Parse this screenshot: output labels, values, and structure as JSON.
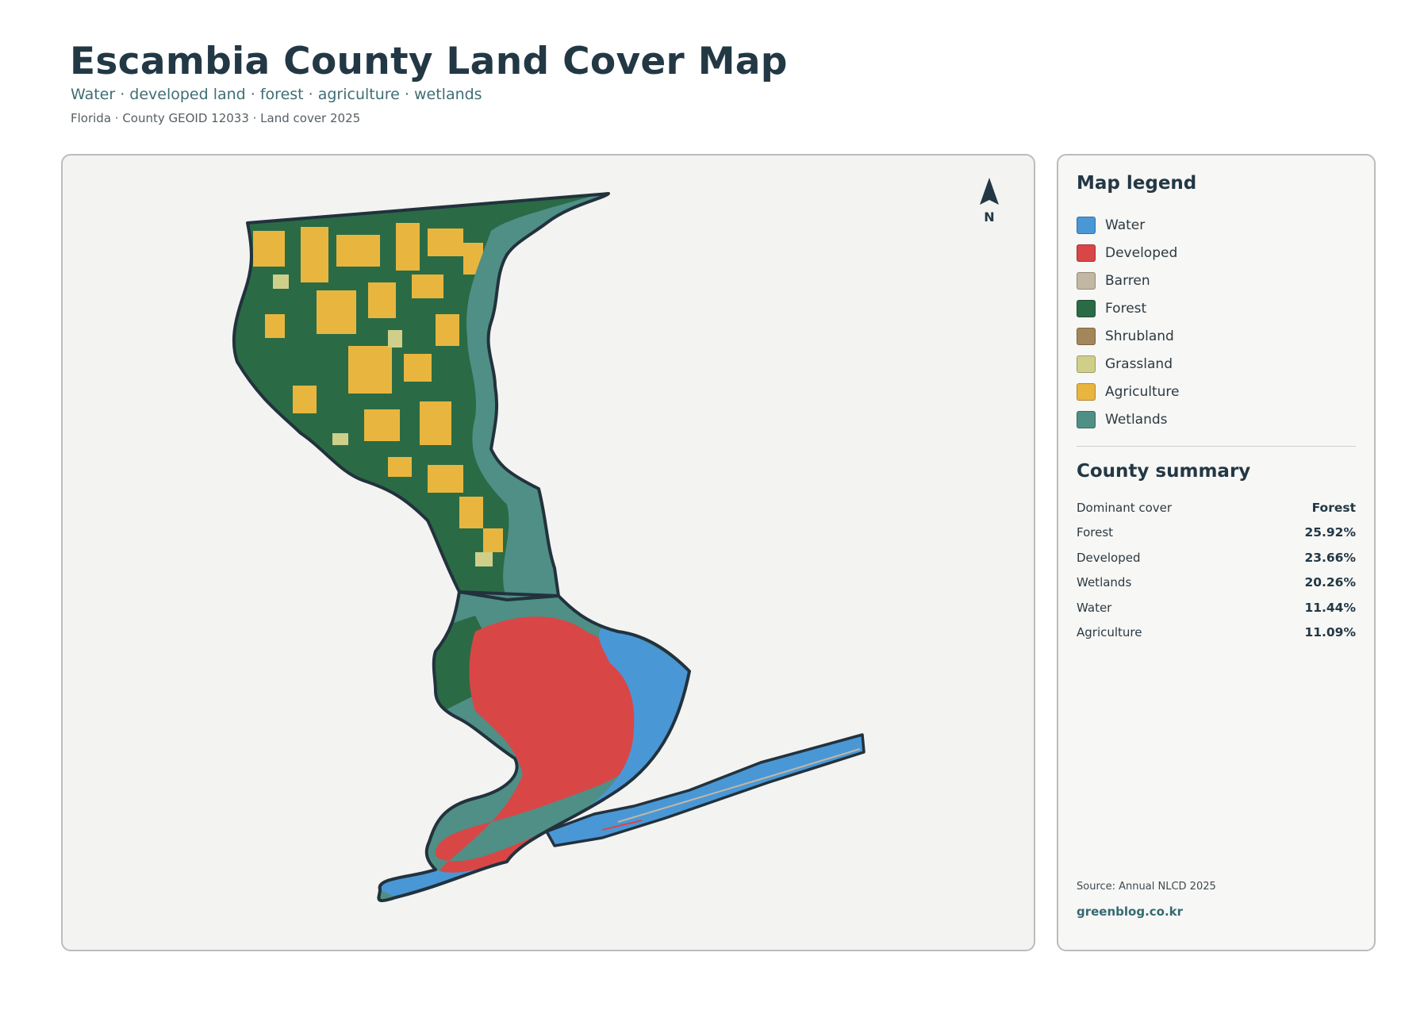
{
  "header": {
    "title": "Escambia County Land Cover Map",
    "subtitle": "Water · developed land · forest · agriculture · wetlands",
    "meta": "Florida · County GEOID 12033 · Land cover 2025"
  },
  "map": {
    "north_label": "N",
    "background": "#f3f3f1",
    "outline_color": "#22323d"
  },
  "legend": {
    "title": "Map legend",
    "items": [
      {
        "label": "Water",
        "color": "#4a97d6"
      },
      {
        "label": "Developed",
        "color": "#d94646"
      },
      {
        "label": "Barren",
        "color": "#c2b7a3"
      },
      {
        "label": "Forest",
        "color": "#2a6b45"
      },
      {
        "label": "Shrubland",
        "color": "#a3875a"
      },
      {
        "label": "Grassland",
        "color": "#cfcf8a"
      },
      {
        "label": "Agriculture",
        "color": "#e8b63e"
      },
      {
        "label": "Wetlands",
        "color": "#4f8f86"
      }
    ]
  },
  "summary": {
    "title": "County summary",
    "rows": [
      {
        "label": "Dominant cover",
        "value": "Forest"
      },
      {
        "label": "Forest",
        "value": "25.92%"
      },
      {
        "label": "Developed",
        "value": "23.66%"
      },
      {
        "label": "Wetlands",
        "value": "20.26%"
      },
      {
        "label": "Water",
        "value": "11.44%"
      },
      {
        "label": "Agriculture",
        "value": "11.09%"
      }
    ]
  },
  "footer": {
    "source": "Source: Annual NLCD 2025",
    "site": "greenblog.co.kr"
  }
}
